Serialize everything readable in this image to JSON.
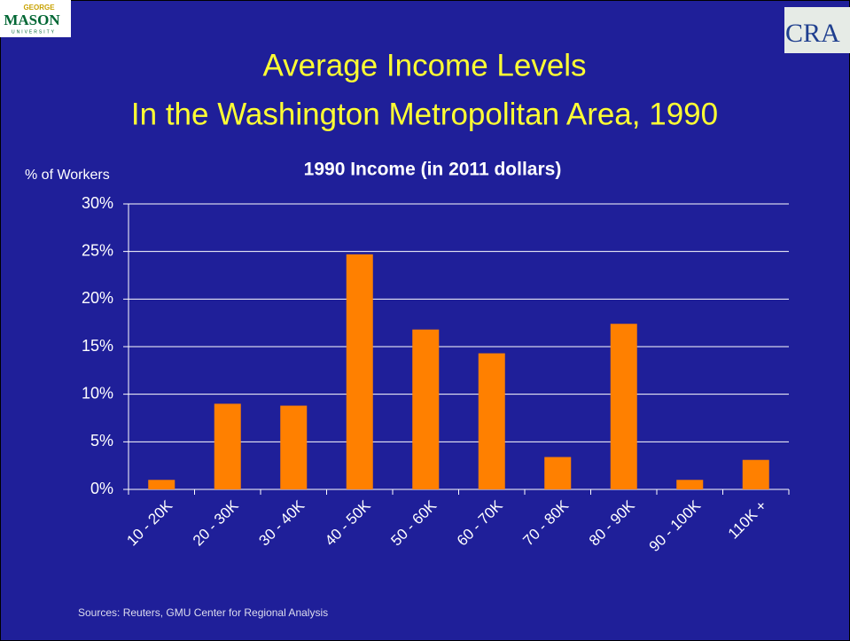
{
  "logos": {
    "left": {
      "top": "GEORGE",
      "main": "MASON",
      "bottom": "UNIVERSITY"
    },
    "right": "CRA"
  },
  "slide_title": [
    "Average Income Levels",
    "In the Washington Metropolitan Area, 1990"
  ],
  "source": "Sources: Reuters,  GMU Center for Regional Analysis",
  "chart_data": {
    "type": "bar",
    "title": "1990 Income (in 2011 dollars)",
    "y_label": "% of Workers",
    "categories": [
      "10 - 20K",
      "20 - 30K",
      "30 - 40K",
      "40 - 50K",
      "50 - 60K",
      "60 - 70K",
      "70 - 80K",
      "80 - 90K",
      "90 - 100K",
      "110K +"
    ],
    "values": [
      1.0,
      9.0,
      8.8,
      24.7,
      16.8,
      14.3,
      3.4,
      17.4,
      1.0,
      3.1
    ],
    "color": "#ff8000",
    "ylim": [
      0,
      30
    ],
    "yticks": [
      {
        "value": 0,
        "label": "0%"
      },
      {
        "value": 5,
        "label": "5%"
      },
      {
        "value": 10,
        "label": "10%"
      },
      {
        "value": 15,
        "label": "15%"
      },
      {
        "value": 20,
        "label": "20%"
      },
      {
        "value": 25,
        "label": "25%"
      },
      {
        "value": 30,
        "label": "30%"
      }
    ],
    "grid": true
  }
}
